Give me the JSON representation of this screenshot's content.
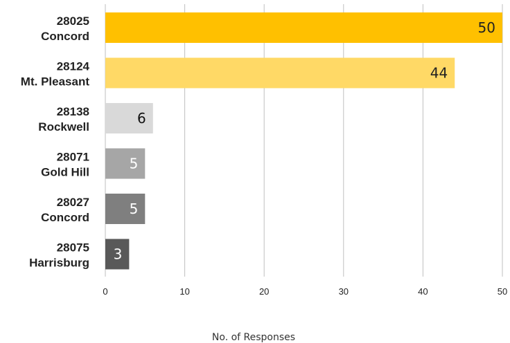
{
  "chart_data": {
    "type": "bar",
    "orientation": "horizontal",
    "categories": [
      [
        "28025",
        "Concord"
      ],
      [
        "28124",
        "Mt. Pleasant"
      ],
      [
        "28138",
        "Rockwell"
      ],
      [
        "28071",
        "Gold Hill"
      ],
      [
        "28027",
        "Concord"
      ],
      [
        "28075",
        "Harrisburg"
      ]
    ],
    "values": [
      50,
      44,
      6,
      5,
      5,
      3
    ],
    "data_labels": [
      "50",
      "44",
      "6",
      "5",
      "5",
      "3"
    ],
    "bar_colors": [
      "#FFC000",
      "#FFD966",
      "#D9D9D9",
      "#A6A6A6",
      "#7F7F7F",
      "#595959"
    ],
    "data_label_colors": [
      "#222222",
      "#222222",
      "#111111",
      "#FFFFFF",
      "#FFFFFF",
      "#FFFFFF"
    ],
    "xlim": [
      0,
      50
    ],
    "xticks": [
      "0",
      "10",
      "20",
      "30",
      "40",
      "50"
    ],
    "xlabel": "No. of Responses",
    "grid": "vertical",
    "grid_color": "#BFBFBF",
    "legend": "none"
  }
}
